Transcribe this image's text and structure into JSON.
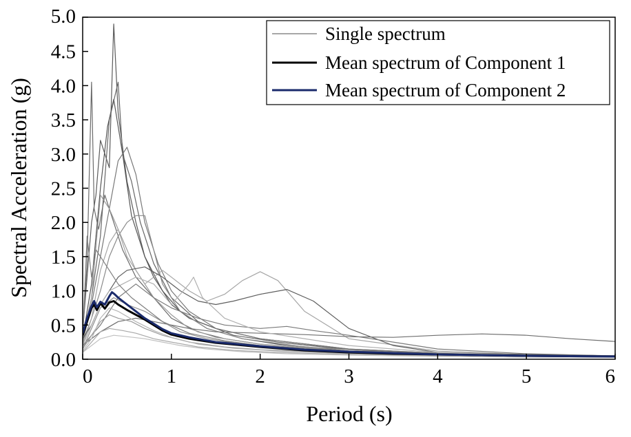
{
  "chart_data": {
    "type": "line",
    "title": "",
    "xlabel": "Period (s)",
    "ylabel": "Spectral Acceleration (g)",
    "xlim": [
      0,
      6
    ],
    "ylim": [
      0,
      5
    ],
    "x_ticks": [
      0,
      1,
      2,
      3,
      4,
      5,
      6
    ],
    "x_tick_labels": [
      "0",
      "1",
      "2",
      "3",
      "4",
      "5",
      "6"
    ],
    "y_ticks": [
      0,
      0.5,
      1,
      1.5,
      2,
      2.5,
      3,
      3.5,
      4,
      4.5,
      5
    ],
    "y_tick_labels": [
      "0.0",
      "0.5",
      "1.0",
      "1.5",
      "2.0",
      "2.5",
      "3.0",
      "3.5",
      "4.0",
      "4.5",
      "5.0"
    ],
    "legend": {
      "location": "top-right",
      "entries": [
        {
          "label": "Single spectrum",
          "color": "#8a8a8a"
        },
        {
          "label": "Mean spectrum of Component 1",
          "color": "#000000"
        },
        {
          "label": "Mean spectrum of Component 2",
          "color": "#1a2a6b"
        }
      ]
    },
    "series": [
      {
        "name": "Single spectrum",
        "color": "#5a5a5a",
        "x": [
          0,
          0.05,
          0.1,
          0.15,
          0.2,
          0.3,
          0.35,
          0.4,
          0.5,
          0.6,
          0.7,
          0.8,
          1.0,
          1.2,
          1.5,
          2.0,
          3.0,
          4.0,
          5.0,
          6.0
        ],
        "y": [
          0.4,
          1.2,
          2.0,
          2.4,
          3.2,
          2.8,
          4.9,
          3.6,
          2.6,
          2.0,
          1.5,
          1.2,
          0.8,
          0.6,
          0.45,
          0.3,
          0.15,
          0.09,
          0.06,
          0.05
        ]
      },
      {
        "name": "Single spectrum",
        "color": "#6a6a6a",
        "x": [
          0,
          0.05,
          0.1,
          0.13,
          0.18,
          0.25,
          0.35,
          0.45,
          0.6,
          0.8,
          1.0,
          1.3,
          1.6,
          2.0,
          3.0,
          4.0,
          5.0,
          6.0
        ],
        "y": [
          0.35,
          1.4,
          4.05,
          2.2,
          1.9,
          2.4,
          2.0,
          1.6,
          1.2,
          0.9,
          0.6,
          0.4,
          0.3,
          0.22,
          0.12,
          0.08,
          0.06,
          0.05
        ]
      },
      {
        "name": "Single spectrum",
        "color": "#555555",
        "x": [
          0,
          0.1,
          0.2,
          0.28,
          0.35,
          0.45,
          0.55,
          0.7,
          0.9,
          1.1,
          1.4,
          1.8,
          2.2,
          3.0,
          4.0,
          5.0,
          6.0
        ],
        "y": [
          0.3,
          1.1,
          2.5,
          3.4,
          3.8,
          3.0,
          2.1,
          1.5,
          1.0,
          0.7,
          0.45,
          0.3,
          0.22,
          0.12,
          0.08,
          0.06,
          0.05
        ]
      },
      {
        "name": "Single spectrum",
        "color": "#666666",
        "x": [
          0,
          0.1,
          0.2,
          0.3,
          0.4,
          0.45,
          0.55,
          0.65,
          0.8,
          1.0,
          1.3,
          1.7,
          2.2,
          3.0,
          4.0,
          5.0,
          6.0
        ],
        "y": [
          0.3,
          0.9,
          1.8,
          3.5,
          4.05,
          3.0,
          2.6,
          2.0,
          1.4,
          0.9,
          0.55,
          0.35,
          0.25,
          0.14,
          0.09,
          0.07,
          0.05
        ]
      },
      {
        "name": "Single spectrum",
        "color": "#777777",
        "x": [
          0,
          0.1,
          0.2,
          0.3,
          0.4,
          0.5,
          0.6,
          0.7,
          0.85,
          1.0,
          1.2,
          1.5,
          2.0,
          3.0,
          4.0,
          5.0,
          6.0
        ],
        "y": [
          0.25,
          0.8,
          1.5,
          2.2,
          2.9,
          3.1,
          2.7,
          2.0,
          1.4,
          1.0,
          0.7,
          0.45,
          0.3,
          0.15,
          0.09,
          0.06,
          0.05
        ]
      },
      {
        "name": "Single spectrum",
        "color": "#8a8a8a",
        "x": [
          0,
          0.1,
          0.2,
          0.3,
          0.4,
          0.5,
          0.6,
          0.7,
          0.8,
          0.9,
          1.1,
          1.4,
          1.8,
          2.5,
          3.5,
          4.5,
          6.0
        ],
        "y": [
          0.25,
          0.6,
          1.0,
          1.5,
          1.8,
          2.0,
          2.1,
          2.1,
          1.6,
          1.1,
          0.7,
          0.45,
          0.3,
          0.18,
          0.1,
          0.07,
          0.05
        ]
      },
      {
        "name": "Single spectrum",
        "color": "#9a9a9a",
        "x": [
          0,
          0.1,
          0.2,
          0.3,
          0.4,
          0.5,
          0.6,
          0.8,
          1.0,
          1.2,
          1.5,
          2.0,
          3.0,
          4.0,
          5.0,
          6.0
        ],
        "y": [
          0.2,
          0.9,
          2.4,
          2.2,
          1.9,
          1.6,
          1.3,
          0.9,
          0.65,
          0.45,
          0.32,
          0.22,
          0.12,
          0.08,
          0.06,
          0.04
        ]
      },
      {
        "name": "Single spectrum",
        "color": "#a5a5a5",
        "x": [
          0,
          0.1,
          0.2,
          0.3,
          0.4,
          0.5,
          0.7,
          0.9,
          1.0,
          1.2,
          1.4,
          1.6,
          1.8,
          2.0,
          2.2,
          2.5,
          3.0,
          4.0,
          5.0,
          6.0
        ],
        "y": [
          0.2,
          0.6,
          1.3,
          1.7,
          1.9,
          1.5,
          1.1,
          1.3,
          1.2,
          1.0,
          0.85,
          0.95,
          1.15,
          1.28,
          1.15,
          0.7,
          0.3,
          0.12,
          0.07,
          0.05
        ]
      },
      {
        "name": "Single spectrum",
        "color": "#5e5e5e",
        "x": [
          0,
          0.1,
          0.2,
          0.3,
          0.4,
          0.5,
          0.7,
          0.9,
          1.1,
          1.3,
          1.5,
          1.7,
          2.0,
          2.3,
          2.6,
          3.0,
          3.5,
          4.0,
          5.0,
          6.0
        ],
        "y": [
          0.3,
          0.5,
          0.8,
          1.0,
          1.2,
          1.3,
          1.35,
          1.2,
          1.0,
          0.85,
          0.8,
          0.85,
          0.95,
          1.02,
          0.85,
          0.45,
          0.2,
          0.1,
          0.07,
          0.05
        ]
      },
      {
        "name": "Single spectrum",
        "color": "#6e6e6e",
        "x": [
          0,
          0.2,
          0.4,
          0.6,
          0.8,
          1.0,
          1.2,
          1.5,
          2.0,
          2.5,
          3.0,
          3.5,
          4.0,
          4.5,
          5.0,
          5.5,
          6.0
        ],
        "y": [
          0.2,
          0.4,
          0.55,
          0.6,
          0.55,
          0.5,
          0.45,
          0.4,
          0.38,
          0.36,
          0.33,
          0.32,
          0.35,
          0.37,
          0.35,
          0.3,
          0.26
        ]
      },
      {
        "name": "Single spectrum",
        "color": "#7a7a7a",
        "x": [
          0,
          0.2,
          0.4,
          0.6,
          0.8,
          1.0,
          1.3,
          1.6,
          2.0,
          2.3,
          2.6,
          3.0,
          3.5,
          4.0,
          5.0,
          6.0
        ],
        "y": [
          0.2,
          0.5,
          0.9,
          1.1,
          0.9,
          0.75,
          0.6,
          0.5,
          0.45,
          0.48,
          0.42,
          0.35,
          0.25,
          0.15,
          0.08,
          0.05
        ]
      },
      {
        "name": "Single spectrum",
        "color": "#b0b0b0",
        "x": [
          0,
          0.1,
          0.2,
          0.3,
          0.45,
          0.6,
          0.8,
          1.0,
          1.2,
          1.25,
          1.35,
          1.6,
          2.0,
          3.0,
          4.0,
          5.0,
          6.0
        ],
        "y": [
          0.2,
          0.5,
          0.8,
          1.0,
          1.1,
          1.2,
          1.1,
          0.8,
          1.1,
          1.2,
          0.9,
          0.6,
          0.4,
          0.2,
          0.1,
          0.06,
          0.04
        ]
      },
      {
        "name": "Single spectrum",
        "color": "#8f8f8f",
        "x": [
          0,
          0.1,
          0.2,
          0.35,
          0.5,
          0.7,
          0.9,
          1.1,
          1.4,
          1.8,
          2.2,
          3.0,
          4.0,
          5.0,
          6.0
        ],
        "y": [
          0.15,
          0.45,
          0.75,
          0.9,
          0.8,
          0.7,
          0.55,
          0.4,
          0.3,
          0.22,
          0.17,
          0.1,
          0.07,
          0.05,
          0.04
        ]
      },
      {
        "name": "Single spectrum",
        "color": "#9c9c9c",
        "x": [
          0,
          0.1,
          0.2,
          0.3,
          0.4,
          0.55,
          0.7,
          0.9,
          1.2,
          1.6,
          2.0,
          3.0,
          4.0,
          5.0,
          6.0
        ],
        "y": [
          0.15,
          0.35,
          0.55,
          0.65,
          0.6,
          0.55,
          0.45,
          0.35,
          0.25,
          0.18,
          0.14,
          0.09,
          0.06,
          0.05,
          0.04
        ]
      },
      {
        "name": "Single spectrum",
        "color": "#a8a8a8",
        "x": [
          0,
          0.1,
          0.2,
          0.3,
          0.45,
          0.6,
          0.8,
          1.0,
          1.3,
          1.7,
          2.2,
          3.0,
          4.0,
          5.0,
          6.0
        ],
        "y": [
          0.1,
          0.25,
          0.4,
          0.45,
          0.42,
          0.38,
          0.3,
          0.25,
          0.18,
          0.13,
          0.1,
          0.07,
          0.05,
          0.04,
          0.03
        ]
      },
      {
        "name": "Single spectrum",
        "color": "#b5b5b5",
        "x": [
          0,
          0.1,
          0.2,
          0.3,
          0.4,
          0.6,
          0.8,
          1.0,
          1.3,
          1.7,
          2.2,
          3.0,
          4.0,
          5.0,
          6.0
        ],
        "y": [
          0.12,
          0.3,
          0.6,
          0.75,
          0.7,
          0.55,
          0.42,
          0.32,
          0.22,
          0.16,
          0.12,
          0.08,
          0.06,
          0.04,
          0.03
        ]
      },
      {
        "name": "Single spectrum",
        "color": "#7f7f7f",
        "x": [
          0,
          0.05,
          0.1,
          0.15,
          0.2,
          0.3,
          0.4,
          0.55,
          0.7,
          0.9,
          1.2,
          1.6,
          2.0,
          3.0,
          4.0,
          5.0,
          6.0
        ],
        "y": [
          0.3,
          1.8,
          1.2,
          1.6,
          1.5,
          1.3,
          1.1,
          0.9,
          0.75,
          0.55,
          0.38,
          0.27,
          0.2,
          0.12,
          0.08,
          0.06,
          0.05
        ]
      },
      {
        "name": "Single spectrum",
        "color": "#c0c0c0",
        "x": [
          0,
          0.1,
          0.2,
          0.35,
          0.5,
          0.7,
          0.9,
          1.1,
          1.4,
          1.8,
          2.3,
          3.0,
          4.0,
          5.0,
          6.0
        ],
        "y": [
          0.1,
          0.2,
          0.3,
          0.35,
          0.33,
          0.3,
          0.25,
          0.2,
          0.15,
          0.11,
          0.08,
          0.06,
          0.04,
          0.03,
          0.03
        ]
      },
      {
        "name": "Mean spectrum of Component 1",
        "color": "#000000",
        "x": [
          0,
          0.05,
          0.1,
          0.13,
          0.16,
          0.2,
          0.25,
          0.3,
          0.35,
          0.4,
          0.5,
          0.6,
          0.7,
          0.8,
          0.9,
          1.0,
          1.2,
          1.5,
          2.0,
          2.5,
          3.0,
          3.5,
          4.0,
          5.0,
          6.0
        ],
        "y": [
          0.35,
          0.55,
          0.75,
          0.8,
          0.72,
          0.82,
          0.74,
          0.83,
          0.85,
          0.8,
          0.72,
          0.65,
          0.58,
          0.5,
          0.42,
          0.36,
          0.3,
          0.24,
          0.18,
          0.13,
          0.1,
          0.08,
          0.07,
          0.05,
          0.04
        ]
      },
      {
        "name": "Mean spectrum of Component 2",
        "color": "#1a2a6b",
        "x": [
          0,
          0.05,
          0.1,
          0.13,
          0.16,
          0.2,
          0.25,
          0.3,
          0.33,
          0.36,
          0.4,
          0.5,
          0.6,
          0.7,
          0.8,
          0.9,
          1.0,
          1.2,
          1.5,
          2.0,
          2.5,
          3.0,
          3.5,
          4.0,
          5.0,
          6.0
        ],
        "y": [
          0.38,
          0.6,
          0.78,
          0.85,
          0.76,
          0.84,
          0.8,
          0.92,
          0.98,
          0.95,
          0.9,
          0.8,
          0.7,
          0.6,
          0.52,
          0.44,
          0.38,
          0.32,
          0.25,
          0.19,
          0.14,
          0.11,
          0.09,
          0.07,
          0.05,
          0.04
        ]
      }
    ]
  }
}
